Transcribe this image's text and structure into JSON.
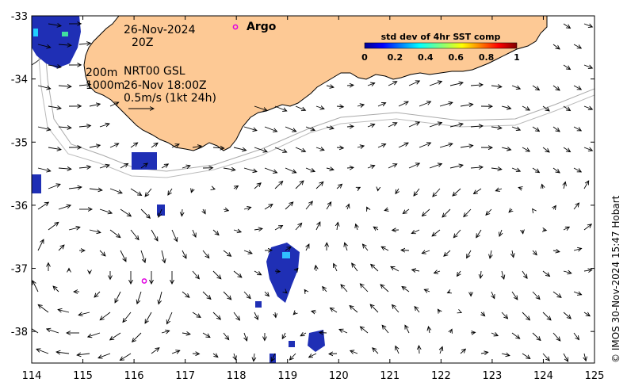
{
  "map": {
    "lon_range": [
      114,
      125
    ],
    "lat_range": [
      -38.5,
      -33
    ],
    "x_ticks": [
      "114",
      "115",
      "116",
      "117",
      "118",
      "119",
      "120",
      "121",
      "122",
      "123",
      "124",
      "125"
    ],
    "y_ticks": [
      "-33",
      "-34",
      "-35",
      "-36",
      "-37",
      "-38"
    ],
    "colors": {
      "land": "#fdc995",
      "coast": "#000000",
      "isobath": "#aaaaaa",
      "argo": "#e000e0",
      "sst_blue": "#1f2fb5"
    }
  },
  "labels": {
    "date": "26-Nov-2024",
    "time": "20Z",
    "argo": "Argo",
    "isobaths_a": "200m",
    "isobaths_b": "1000m",
    "nrt": "NRT00 GSL",
    "nrt_time": "26-Nov 18:00Z",
    "scale": "0.5m/s (1kt 24h)",
    "credit": "© IMOS 30-Nov-2024 15:47 Hobart"
  },
  "colorbar": {
    "title": "std dev of 4hr SST comp",
    "ticks": [
      "0",
      "0.2",
      "0.4",
      "0.6",
      "0.8",
      "1"
    ],
    "range": [
      0,
      1
    ]
  },
  "argo_floats": [
    {
      "lon": 116.2,
      "lat": -37.2
    }
  ]
}
